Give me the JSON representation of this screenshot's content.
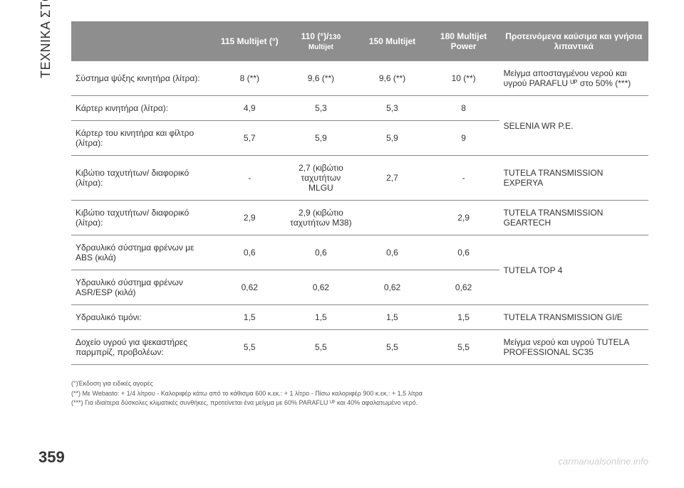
{
  "side_title": "ΤΕΧΝΙΚΑ ΣΤΟΙΧΕΙΑ",
  "page_number": "359",
  "watermark": "carmanualsonline.info",
  "header": {
    "empty": "",
    "c1": "115 Multijet (°)",
    "c2_a": "110 (°)/",
    "c2_b": "130 Multijet",
    "c3": "150 Multijet",
    "c4": "180 Multijet Power",
    "c5": "Προτεινόμενα καύσιμα και γνήσια λιπαντικά"
  },
  "rows": {
    "r1": {
      "label": "Σύστημα ψύξης κινητήρα (λίτρα):",
      "v1": "8 (**)",
      "v2": "9,6 (**)",
      "v3": "9,6 (**)",
      "v4": "10 (**)",
      "rec": "Μείγμα αποσταγμένου νερού και υγρού PARAFLU ᵁᴾ στο 50% (***)"
    },
    "r2": {
      "label": "Κάρτερ κινητήρα (λίτρα):",
      "v1": "4,9",
      "v2": "5,3",
      "v3": "5,3",
      "v4": "8"
    },
    "r3": {
      "label": "Κάρτερ του κινητήρα και φίλτρο (λίτρα):",
      "v1": "5,7",
      "v2": "5,9",
      "v3": "5,9",
      "v4": "9",
      "rec": "SELENIA WR P.E."
    },
    "r4": {
      "label": "Κιβώτιο ταχυτήτων/ διαφορικό (λίτρα):",
      "v1": "-",
      "v2": "2,7 (κιβώτιο ταχυτήτων MLGU",
      "v3": "2,7",
      "v4": "-",
      "rec": "TUTELA TRANSMISSION EXPERYA"
    },
    "r5": {
      "label": "Κιβώτιο ταχυτήτων/ διαφορικό (λίτρα):",
      "v1": "2,9",
      "v2": "2,9 (κιβώτιο ταχυτήτων M38)",
      "v3": "",
      "v4": "2,9",
      "rec": "TUTELA TRANSMISSION GEARTECH"
    },
    "r6": {
      "label": "Υδραυλικό σύστημα φρένων με ABS (κιλά)",
      "v1": "0,6",
      "v2": "0,6",
      "v3": "0,6",
      "v4": "0,6"
    },
    "r7": {
      "label": "Υδραυλικό σύστημα φρένων ASR/ESP (κιλά)",
      "v1": "0,62",
      "v2": "0,62",
      "v3": "0,62",
      "v4": "0,62",
      "rec": "TUTELA TOP 4"
    },
    "r8": {
      "label": "Υδραυλικό τιμόνι:",
      "v1": "1,5",
      "v2": "1,5",
      "v3": "1,5",
      "v4": "1,5",
      "rec": "TUTELA TRANSMISSION GI/E"
    },
    "r9": {
      "label": "Δοχείο υγρού για ψεκαστήρες παρμπρίζ, προβολέων:",
      "v1": "5,5",
      "v2": "5,5",
      "v3": "5,5",
      "v4": "5,5",
      "rec": "Μείγμα νερού και υγρού TUTELA PROFESSIONAL SC35"
    }
  },
  "footnotes": {
    "f1": "(°)Έκδοση για ειδικές αγορές",
    "f2": "(**) Με Webasto: + 1/4 λίτρου - Καλοριφέρ κάτω από το κάθισμα 600 κ.εκ.: + 1 λίτρο - Πίσω καλοριφέρ 900 κ.εκ.: + 1,5 λίτρα",
    "f3": "(***) Για ιδιαίτερα δύσκολες κλιματικές συνθήκες, προτείνεται ένα μείγμα με 60% PARAFLU ᵁᴾ και 40% αφαλατωμένο νερό."
  }
}
